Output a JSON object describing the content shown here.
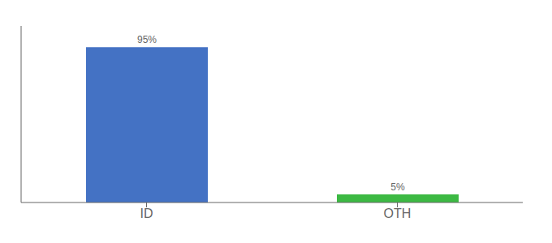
{
  "chart_data": {
    "type": "bar",
    "categories": [
      "ID",
      "OTH"
    ],
    "values": [
      95,
      5
    ],
    "value_labels": [
      "95%",
      "5%"
    ],
    "colors": [
      "#4472c4",
      "#3cb943"
    ],
    "ylim": [
      0,
      108
    ],
    "data_labels": true,
    "tick_labels": "x",
    "grid": false
  }
}
